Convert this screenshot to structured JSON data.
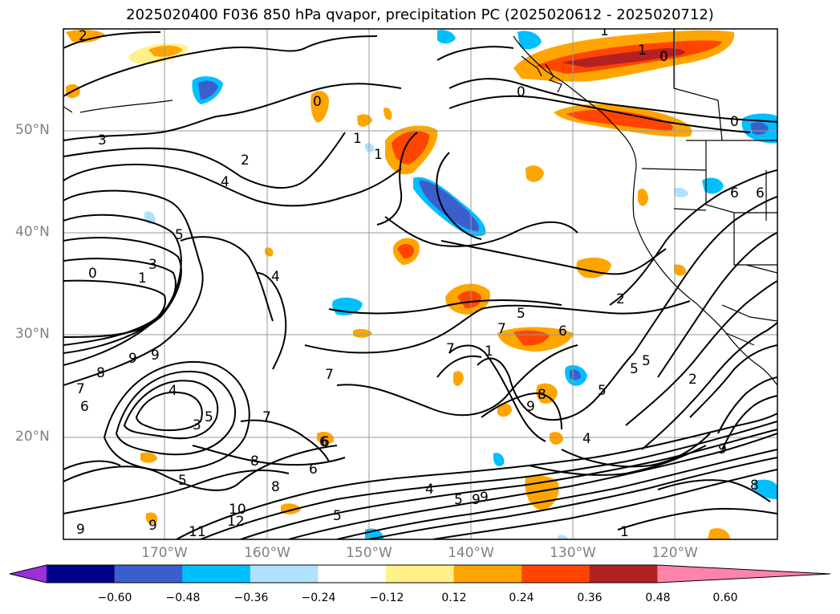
{
  "title": "2025020400 F036 850 hPa qvapor, precipitation PC (2025020612 - 2025020712)",
  "latitude_labels": [
    "50°N",
    "40°N",
    "30°N",
    "20°N"
  ],
  "longitude_labels": [
    "170°W",
    "160°W",
    "150°W",
    "140°W",
    "130°W",
    "120°W"
  ],
  "colorbar": {
    "colors": [
      "#9b30d9",
      "#00008b",
      "#3a5fcd",
      "#00bfff",
      "#b0e2ff",
      "#ffffff",
      "#fff08a",
      "#ffa500",
      "#ff4500",
      "#b22222",
      "#ff82ab"
    ],
    "ticks": [
      "−0.60",
      "−0.48",
      "−0.36",
      "−0.24",
      "−0.12",
      "0.12",
      "0.24",
      "0.36",
      "0.48",
      "0.60"
    ]
  },
  "contour_labels": [
    "2",
    "1",
    "0",
    "3",
    "2",
    "4",
    "5",
    "3",
    "1",
    "0",
    "9",
    "9",
    "8",
    "7",
    "4",
    "3",
    "5",
    "6",
    "7",
    "8",
    "5",
    "10",
    "12",
    "11",
    "9",
    "9",
    "6",
    "8",
    "9",
    "5",
    "4",
    "6",
    "7",
    "4",
    "5",
    "7",
    "1",
    "7",
    "6",
    "5",
    "8",
    "9",
    "4",
    "5",
    "5",
    "6",
    "2",
    "1",
    "0",
    "1",
    "0",
    "1",
    "0",
    "6",
    "6",
    "2",
    "9",
    "5",
    "9",
    "8",
    "1"
  ]
}
